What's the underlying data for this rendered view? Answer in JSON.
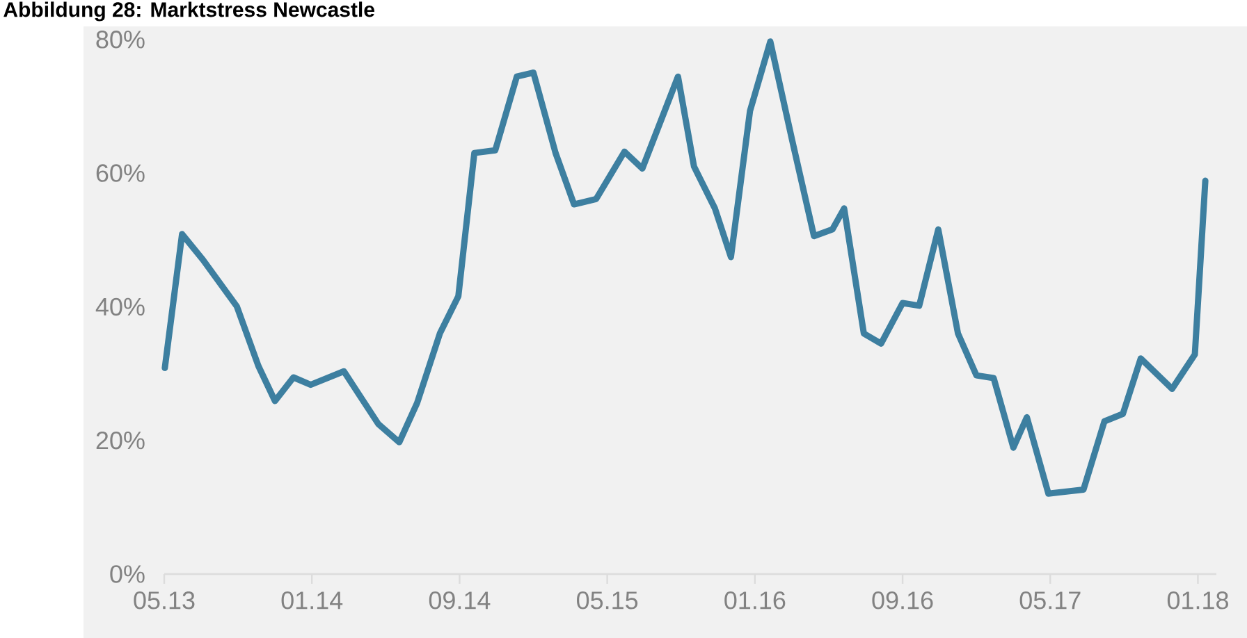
{
  "chart_data": {
    "type": "line",
    "title": "Abbildung 28: Marktstress Newcastle",
    "x": [
      "2013-05-02",
      "2013-05-30",
      "2013-07-04",
      "2013-08-29",
      "2013-10-04",
      "2013-11-01",
      "2013-12-01",
      "2013-12-29",
      "2014-02-23",
      "2014-04-19",
      "2014-05-23",
      "2014-06-22",
      "2014-07-29",
      "2014-08-29",
      "2014-09-25",
      "2014-10-29",
      "2014-12-04",
      "2015-01-01",
      "2015-02-07",
      "2015-03-07",
      "2015-04-13",
      "2015-05-29",
      "2015-06-28",
      "2015-08-26",
      "2015-09-22",
      "2015-10-26",
      "2015-11-22",
      "2015-12-23",
      "2016-01-26",
      "2016-03-01",
      "2016-04-07",
      "2016-05-07",
      "2016-05-26",
      "2016-06-28",
      "2016-07-26",
      "2016-09-01",
      "2016-09-28",
      "2016-10-29",
      "2016-12-01",
      "2017-01-01",
      "2017-01-29",
      "2017-03-01",
      "2017-03-23",
      "2017-04-28",
      "2017-06-25",
      "2017-07-29",
      "2017-08-29",
      "2017-09-28",
      "2017-11-19",
      "2017-12-26",
      "2018-01-13"
    ],
    "series": [
      {
        "color": "#3d7fa0",
        "values": [
          30.5,
          50.3,
          46.5,
          39.6,
          30.8,
          25.6,
          29.1,
          28.0,
          30.0,
          22.2,
          19.5,
          25.3,
          35.6,
          41.1,
          62.3,
          62.7,
          73.6,
          74.2,
          62.3,
          54.7,
          55.5,
          62.5,
          60.0,
          73.6,
          60.3,
          54.1,
          46.9,
          68.5,
          78.8,
          64.4,
          50.0,
          51.0,
          54.1,
          35.6,
          34.1,
          40.1,
          39.7,
          51.0,
          35.6,
          29.4,
          29.0,
          18.7,
          23.2,
          11.9,
          12.5,
          22.6,
          23.7,
          31.9,
          27.4,
          32.5,
          58.2
        ]
      }
    ],
    "xlim": [
      "2013-05",
      "2018-02"
    ],
    "xticks": [
      {
        "value": "2013-05",
        "label": "05.13"
      },
      {
        "value": "2014-01",
        "label": "01.14"
      },
      {
        "value": "2014-09",
        "label": "09.14"
      },
      {
        "value": "2015-05",
        "label": "05.15"
      },
      {
        "value": "2016-01",
        "label": "01.16"
      },
      {
        "value": "2016-09",
        "label": "09.16"
      },
      {
        "value": "2017-05",
        "label": "05.17"
      },
      {
        "value": "2018-01",
        "label": "01.18"
      }
    ],
    "ylim": [
      0,
      80
    ],
    "yticks": [
      {
        "value": 0,
        "label": "0%"
      },
      {
        "value": 20,
        "label": "20%"
      },
      {
        "value": 40,
        "label": "40%"
      },
      {
        "value": 60,
        "label": "60%"
      },
      {
        "value": 80,
        "label": "80%"
      }
    ]
  }
}
